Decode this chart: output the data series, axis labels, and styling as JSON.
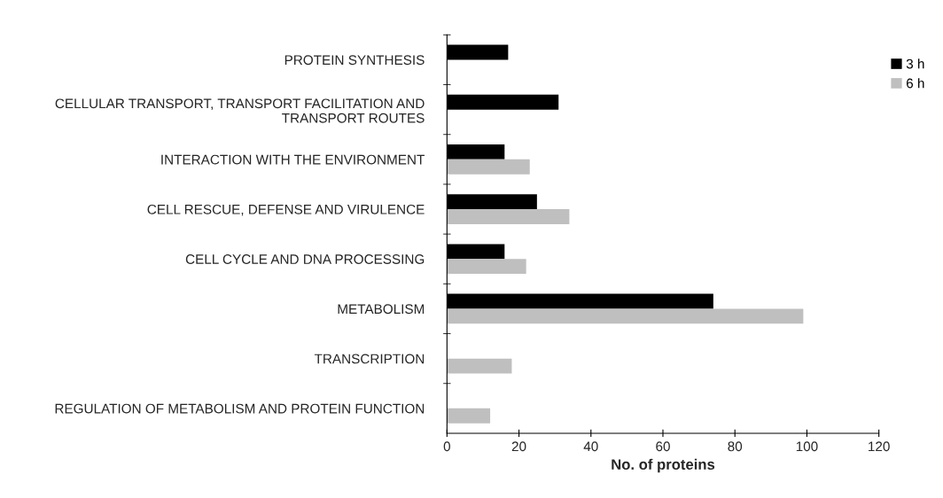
{
  "chart_data": {
    "type": "bar",
    "orientation": "horizontal",
    "xlabel": "No. of proteins",
    "categories": [
      "PROTEIN SYNTHESIS",
      "CELLULAR TRANSPORT, TRANSPORT FACILITATION AND\nTRANSPORT ROUTES",
      "INTERACTION WITH THE ENVIRONMENT",
      "CELL RESCUE, DEFENSE AND VIRULENCE",
      "CELL CYCLE AND DNA PROCESSING",
      "METABOLISM",
      "TRANSCRIPTION",
      "REGULATION OF METABOLISM AND PROTEIN FUNCTION"
    ],
    "series": [
      {
        "name": "3 h",
        "color": "#000000",
        "values": [
          17,
          31,
          16,
          25,
          16,
          74,
          null,
          null
        ]
      },
      {
        "name": "6 h",
        "color": "#bfbfbf",
        "values": [
          null,
          null,
          23,
          34,
          22,
          99,
          18,
          12
        ]
      }
    ],
    "xlim": [
      0,
      120
    ],
    "xticks": [
      0,
      20,
      40,
      60,
      80,
      100,
      120
    ],
    "grid": false,
    "legend": "right"
  }
}
